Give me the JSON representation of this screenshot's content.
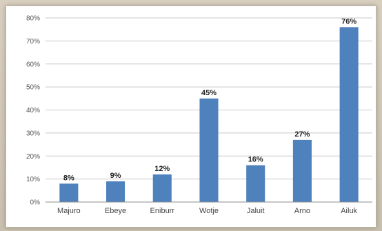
{
  "chart_data": {
    "type": "bar",
    "categories": [
      "Majuro",
      "Ebeye",
      "Eniburr",
      "Wotje",
      "Jaluit",
      "Arno",
      "Ailuk"
    ],
    "values": [
      8,
      9,
      12,
      45,
      16,
      27,
      76
    ],
    "data_labels": [
      "8%",
      "9%",
      "12%",
      "45%",
      "16%",
      "27%",
      "76%"
    ],
    "title": "",
    "xlabel": "",
    "ylabel": "",
    "ylim": [
      0,
      80
    ],
    "yticks": [
      0,
      10,
      20,
      30,
      40,
      50,
      60,
      70,
      80
    ],
    "ytick_labels": [
      "0%",
      "10%",
      "20%",
      "30%",
      "40%",
      "50%",
      "60%",
      "70%",
      "80%"
    ],
    "grid": true,
    "legend": "none",
    "colors": {
      "bar": "#4f81bd",
      "grid": "#c8c8c8",
      "axis": "#8c8c8c"
    }
  }
}
